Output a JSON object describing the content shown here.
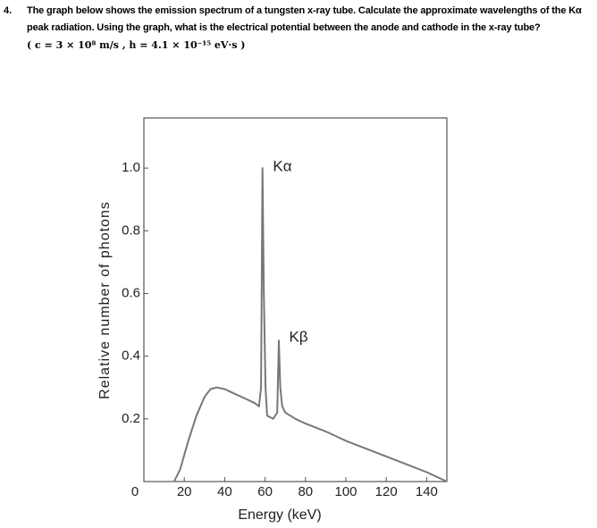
{
  "question": {
    "number": "4.",
    "text": "The graph below shows the emission spectrum of a tungsten x-ray tube. Calculate the approximate wavelengths of the Kα peak radiation. Using the graph, what is the electrical potential between the anode and cathode in the x-ray tube?",
    "formula": "( c = 3 × 10⁸ m/s , h = 4.1 × 10⁻¹⁵ eV·s )"
  },
  "chart_data": {
    "type": "line",
    "x_label": "Energy (keV)",
    "y_label": "Relative number of photons",
    "xlim": [
      0,
      150
    ],
    "ylim": [
      0,
      1.16
    ],
    "xticks": [
      0,
      20,
      40,
      60,
      80,
      100,
      120,
      140
    ],
    "yticks": [
      0.2,
      0.4,
      0.6,
      {
        "value": 1,
        "label": "1.0"
      },
      0.8
    ],
    "annotations": [
      "Kα",
      "Kβ"
    ],
    "series": [
      {
        "color": "#777777",
        "x": [
          15,
          18,
          22,
          26,
          30,
          33,
          36,
          40,
          45,
          50,
          55,
          57,
          58,
          58.7,
          59.4,
          60.2,
          61,
          64,
          66,
          66.8,
          67.5,
          68.5,
          70,
          75,
          80,
          90,
          100,
          110,
          120,
          130,
          140,
          150
        ],
        "values": [
          0,
          0.04,
          0.13,
          0.21,
          0.27,
          0.295,
          0.3,
          0.295,
          0.28,
          0.265,
          0.25,
          0.24,
          0.3,
          1,
          0.6,
          0.3,
          0.21,
          0.2,
          0.22,
          0.45,
          0.3,
          0.24,
          0.22,
          0.2,
          0.185,
          0.16,
          0.13,
          0.105,
          0.08,
          0.055,
          0.03,
          0
        ]
      }
    ]
  }
}
